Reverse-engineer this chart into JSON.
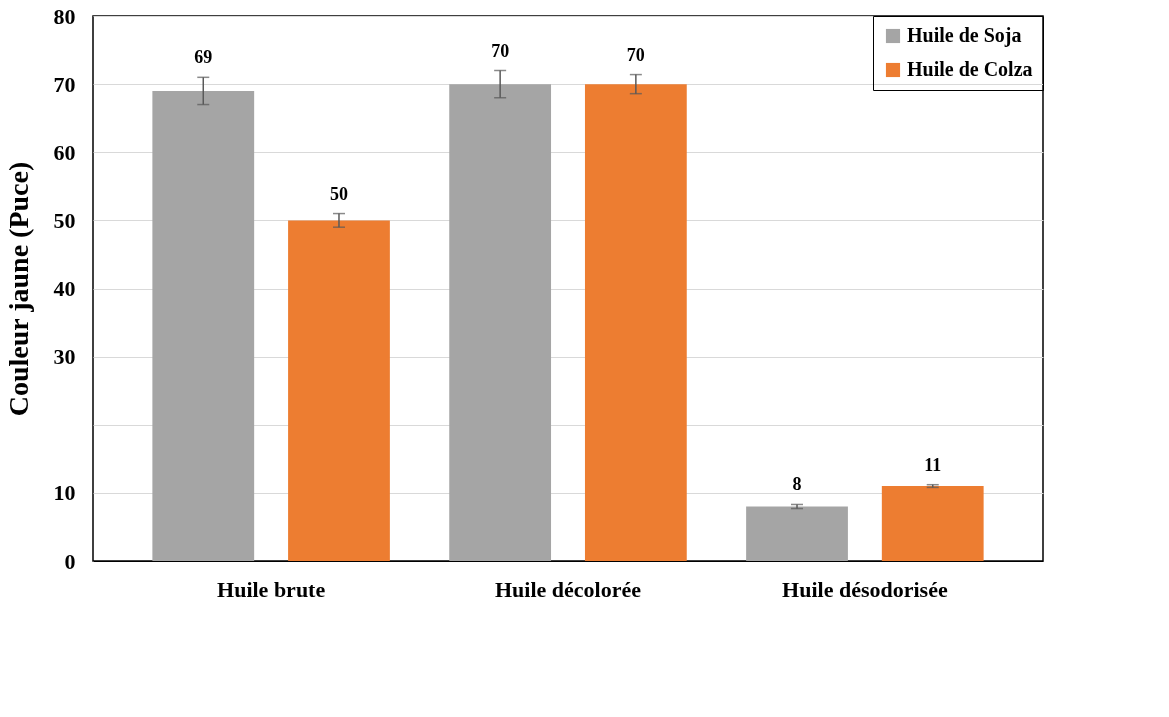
{
  "chart_data": {
    "type": "bar",
    "ylabel": "Couleur jaune  (Puce)",
    "categories": [
      "Huile  brute",
      "Huile décolorée",
      "Huile désodorisée"
    ],
    "series": [
      {
        "name": "Huile de Soja",
        "color": "#a5a5a5",
        "values": [
          69,
          70,
          8
        ],
        "errors": [
          2,
          2,
          0.3
        ]
      },
      {
        "name": "Huile de Colza",
        "color": "#ed7d31",
        "values": [
          50,
          70,
          11
        ],
        "errors": [
          1,
          1.4,
          0.2
        ]
      }
    ],
    "ylim": [
      0,
      80
    ],
    "yticks": [
      0,
      10,
      {
        "value": 20,
        "label": null
      },
      30,
      40,
      50,
      60,
      70,
      80
    ],
    "grid": "y",
    "legend": "top right",
    "data_labels": true
  }
}
